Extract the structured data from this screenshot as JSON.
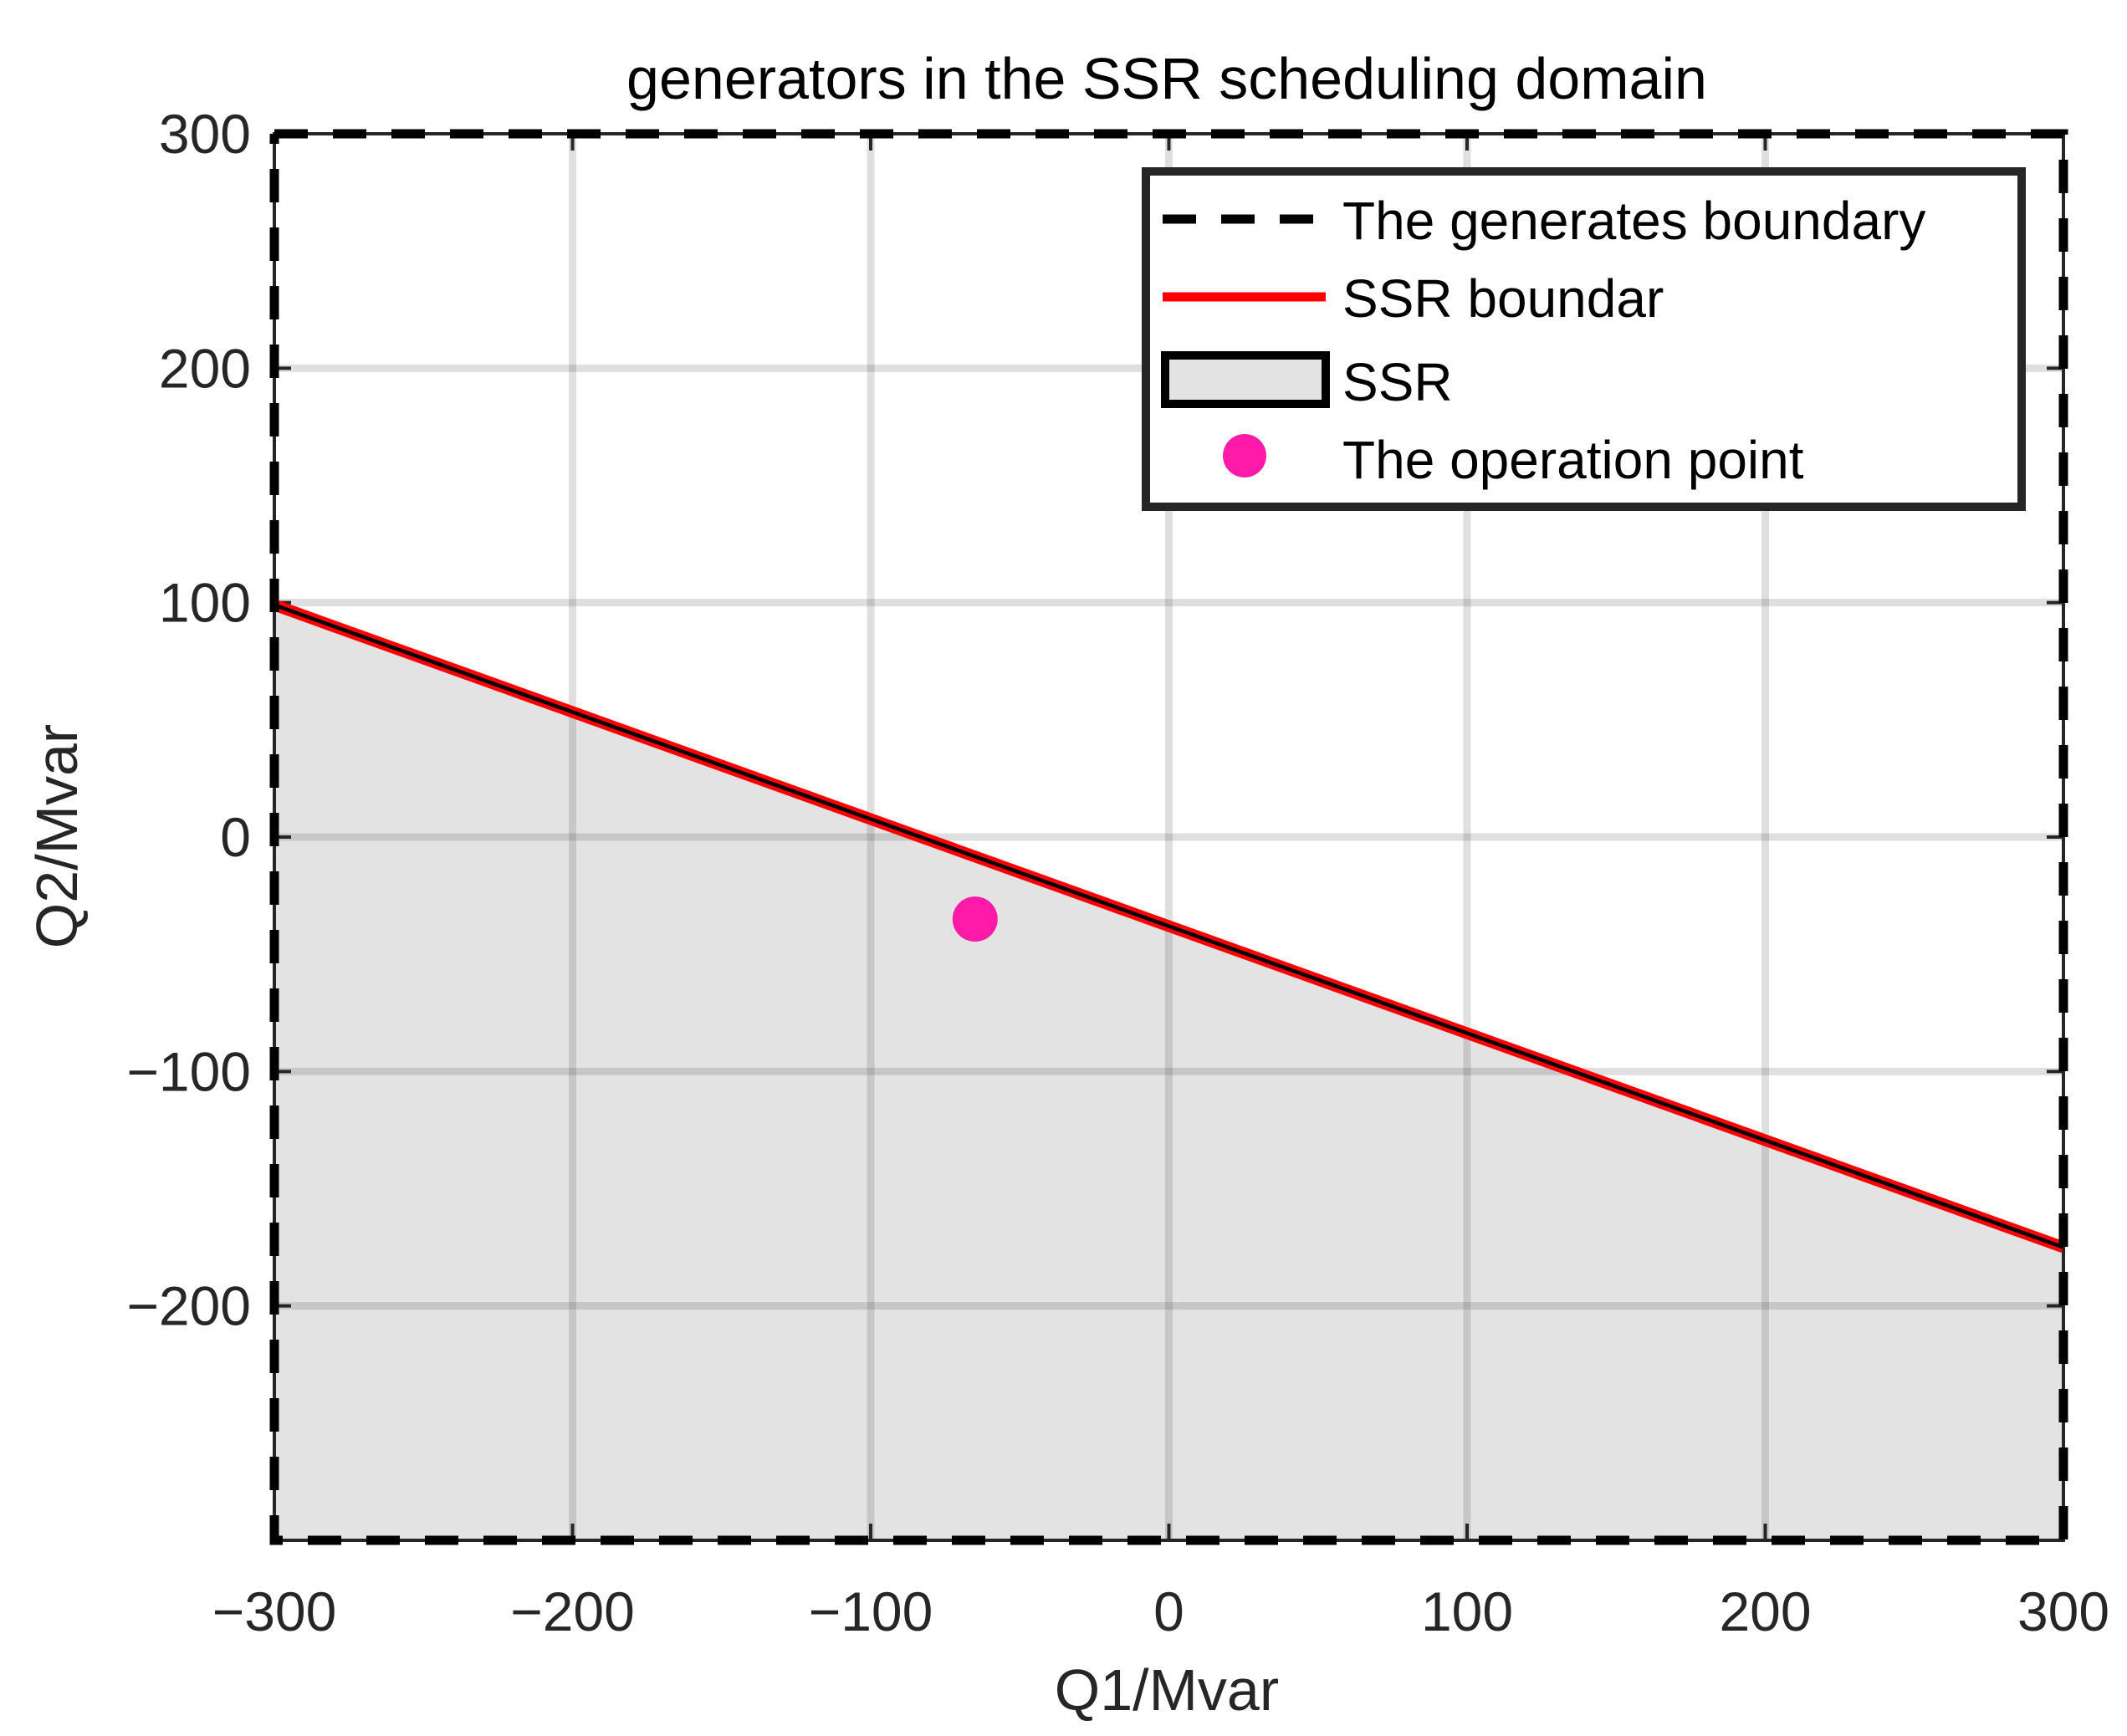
{
  "chart_data": {
    "type": "line",
    "title": "generators in the SSR scheduling domain",
    "xlabel": "Q1/Mvar",
    "ylabel": "Q2/Mvar",
    "xlim": [
      -300,
      300
    ],
    "ylim": [
      -300,
      300
    ],
    "grid": true,
    "x_ticks": [
      -300,
      -200,
      -100,
      0,
      100,
      200,
      300
    ],
    "x_tick_labels": [
      "−300",
      "−200",
      "−100",
      "0",
      "100",
      "200",
      "300"
    ],
    "y_ticks": [
      -200,
      -100,
      0,
      100,
      200,
      300
    ],
    "y_tick_labels": [
      "−200",
      "−100",
      "0",
      "100",
      "200",
      "300"
    ],
    "legend_position": "top-right",
    "series": [
      {
        "name": "The generates boundary",
        "kind": "line",
        "style": "dashed",
        "color": "#000000",
        "x": [
          -300,
          300,
          300,
          -300,
          -300
        ],
        "y": [
          300,
          300,
          -300,
          -300,
          300
        ]
      },
      {
        "name": "SSR boundar",
        "kind": "line",
        "style": "solid",
        "color": "#ff0000",
        "x": [
          -300,
          300
        ],
        "y": [
          99,
          -175
        ]
      },
      {
        "name": "SSR",
        "kind": "area",
        "fill": "#e3e3e3",
        "edge_color": "#000000",
        "x": [
          -300,
          300,
          300,
          -300
        ],
        "y": [
          99,
          -175,
          -300,
          -300
        ]
      },
      {
        "name": "The operation point",
        "kind": "scatter",
        "color": "#ff1aaa",
        "x": [
          -65
        ],
        "y": [
          -35
        ]
      }
    ]
  }
}
